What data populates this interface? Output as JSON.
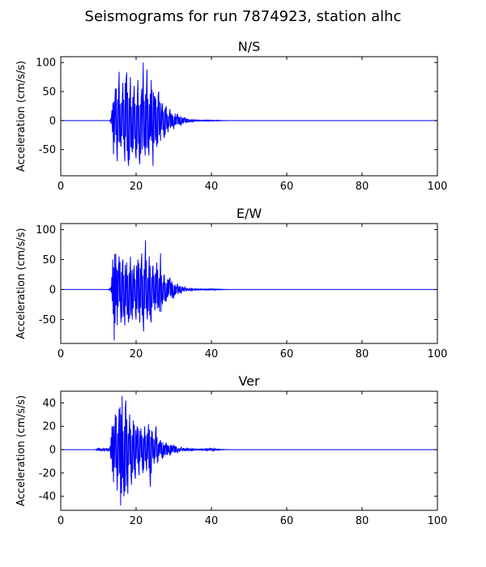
{
  "figure": {
    "title": "Seismograms for run 7874923, station alhc"
  },
  "chart_data": [
    {
      "type": "line",
      "title": "N/S",
      "xlabel": "",
      "ylabel": "Acceleration (cm/s/s)",
      "xlim": [
        0,
        100
      ],
      "ylim": [
        -95,
        110
      ],
      "xticks": [
        0,
        20,
        40,
        60,
        80,
        100
      ],
      "yticks": [
        -50,
        0,
        50,
        100
      ],
      "grid": false,
      "color": "#0000ff",
      "peaks": [
        {
          "x": 13.0,
          "y": 0
        },
        {
          "x": 13.6,
          "y": 18
        },
        {
          "x": 14.0,
          "y": -58
        },
        {
          "x": 14.5,
          "y": 55
        },
        {
          "x": 15.0,
          "y": -70
        },
        {
          "x": 15.5,
          "y": 84
        },
        {
          "x": 16.0,
          "y": -45
        },
        {
          "x": 16.5,
          "y": 65
        },
        {
          "x": 17.0,
          "y": -70
        },
        {
          "x": 17.5,
          "y": 83
        },
        {
          "x": 18.0,
          "y": -78
        },
        {
          "x": 18.5,
          "y": 75
        },
        {
          "x": 19.0,
          "y": -55
        },
        {
          "x": 19.5,
          "y": 60
        },
        {
          "x": 20.0,
          "y": -65
        },
        {
          "x": 20.5,
          "y": 70
        },
        {
          "x": 21.0,
          "y": -75
        },
        {
          "x": 21.5,
          "y": 55
        },
        {
          "x": 21.9,
          "y": 100
        },
        {
          "x": 22.4,
          "y": -60
        },
        {
          "x": 22.9,
          "y": 88
        },
        {
          "x": 23.4,
          "y": -60
        },
        {
          "x": 24.0,
          "y": 70
        },
        {
          "x": 24.5,
          "y": -78
        },
        {
          "x": 25.0,
          "y": 40
        },
        {
          "x": 25.5,
          "y": -45
        },
        {
          "x": 26.0,
          "y": 50
        },
        {
          "x": 26.5,
          "y": -35
        },
        {
          "x": 27.0,
          "y": 30
        },
        {
          "x": 27.5,
          "y": -30
        },
        {
          "x": 28.0,
          "y": 25
        },
        {
          "x": 28.5,
          "y": -20
        },
        {
          "x": 29.0,
          "y": 20
        },
        {
          "x": 30.0,
          "y": -15
        },
        {
          "x": 31.0,
          "y": 12
        },
        {
          "x": 32.0,
          "y": -8
        },
        {
          "x": 33.0,
          "y": 5
        },
        {
          "x": 34.0,
          "y": -3
        },
        {
          "x": 36.0,
          "y": 1
        },
        {
          "x": 40.0,
          "y": -1
        },
        {
          "x": 45.0,
          "y": 0
        },
        {
          "x": 100.0,
          "y": 0
        }
      ]
    },
    {
      "type": "line",
      "title": "E/W",
      "xlabel": "",
      "ylabel": "Acceleration (cm/s/s)",
      "xlim": [
        0,
        100
      ],
      "ylim": [
        -90,
        110
      ],
      "xticks": [
        0,
        20,
        40,
        60,
        80,
        100
      ],
      "yticks": [
        -50,
        0,
        50,
        100
      ],
      "grid": false,
      "color": "#0000ff",
      "peaks": [
        {
          "x": 12.5,
          "y": 0
        },
        {
          "x": 13.3,
          "y": 3
        },
        {
          "x": 13.8,
          "y": 50
        },
        {
          "x": 14.2,
          "y": -85
        },
        {
          "x": 14.6,
          "y": 60
        },
        {
          "x": 15.0,
          "y": -60
        },
        {
          "x": 15.5,
          "y": 55
        },
        {
          "x": 16.0,
          "y": -55
        },
        {
          "x": 16.5,
          "y": 50
        },
        {
          "x": 17.0,
          "y": -60
        },
        {
          "x": 17.5,
          "y": 45
        },
        {
          "x": 18.0,
          "y": -55
        },
        {
          "x": 18.5,
          "y": 55
        },
        {
          "x": 19.0,
          "y": -50
        },
        {
          "x": 19.5,
          "y": 40
        },
        {
          "x": 20.0,
          "y": -50
        },
        {
          "x": 20.5,
          "y": 50
        },
        {
          "x": 21.0,
          "y": -55
        },
        {
          "x": 21.5,
          "y": 60
        },
        {
          "x": 22.0,
          "y": -70
        },
        {
          "x": 22.5,
          "y": 82
        },
        {
          "x": 23.0,
          "y": -50
        },
        {
          "x": 23.5,
          "y": 55
        },
        {
          "x": 24.0,
          "y": -55
        },
        {
          "x": 24.5,
          "y": 40
        },
        {
          "x": 25.0,
          "y": -35
        },
        {
          "x": 25.5,
          "y": 45
        },
        {
          "x": 26.0,
          "y": -30
        },
        {
          "x": 26.5,
          "y": 60
        },
        {
          "x": 27.0,
          "y": -25
        },
        {
          "x": 27.5,
          "y": 25
        },
        {
          "x": 28.0,
          "y": -20
        },
        {
          "x": 29.0,
          "y": 20
        },
        {
          "x": 30.0,
          "y": -15
        },
        {
          "x": 31.0,
          "y": 10
        },
        {
          "x": 32.0,
          "y": -6
        },
        {
          "x": 33.0,
          "y": 4
        },
        {
          "x": 34.0,
          "y": -2
        },
        {
          "x": 37.0,
          "y": 1
        },
        {
          "x": 41.0,
          "y": -1
        },
        {
          "x": 45.0,
          "y": 0
        },
        {
          "x": 100.0,
          "y": 0
        }
      ]
    },
    {
      "type": "line",
      "title": "Ver",
      "xlabel": "",
      "ylabel": "Acceleration (cm/s/s)",
      "xlim": [
        0,
        100
      ],
      "ylim": [
        -52,
        50
      ],
      "xticks": [
        0,
        20,
        40,
        60,
        80,
        100
      ],
      "yticks": [
        -40,
        -20,
        0,
        20,
        40
      ],
      "grid": false,
      "color": "#0000ff",
      "peaks": [
        {
          "x": 9.0,
          "y": 0
        },
        {
          "x": 10.0,
          "y": 1
        },
        {
          "x": 11.0,
          "y": -1
        },
        {
          "x": 12.0,
          "y": 1
        },
        {
          "x": 13.0,
          "y": -1
        },
        {
          "x": 13.6,
          "y": 20
        },
        {
          "x": 14.0,
          "y": -28
        },
        {
          "x": 14.5,
          "y": 30
        },
        {
          "x": 15.0,
          "y": -35
        },
        {
          "x": 15.5,
          "y": 35
        },
        {
          "x": 15.9,
          "y": -48
        },
        {
          "x": 16.3,
          "y": 46
        },
        {
          "x": 16.8,
          "y": -40
        },
        {
          "x": 17.3,
          "y": 42
        },
        {
          "x": 17.8,
          "y": -38
        },
        {
          "x": 18.3,
          "y": 30
        },
        {
          "x": 18.8,
          "y": -30
        },
        {
          "x": 19.3,
          "y": 25
        },
        {
          "x": 19.8,
          "y": -25
        },
        {
          "x": 20.3,
          "y": 20
        },
        {
          "x": 20.8,
          "y": -22
        },
        {
          "x": 21.3,
          "y": 18
        },
        {
          "x": 21.8,
          "y": -20
        },
        {
          "x": 22.3,
          "y": 20
        },
        {
          "x": 22.8,
          "y": -18
        },
        {
          "x": 23.3,
          "y": 22
        },
        {
          "x": 23.8,
          "y": -32
        },
        {
          "x": 24.3,
          "y": 15
        },
        {
          "x": 24.8,
          "y": -12
        },
        {
          "x": 25.3,
          "y": 20
        },
        {
          "x": 25.8,
          "y": -10
        },
        {
          "x": 26.5,
          "y": 8
        },
        {
          "x": 27.0,
          "y": -8
        },
        {
          "x": 28.0,
          "y": 6
        },
        {
          "x": 29.0,
          "y": -5
        },
        {
          "x": 30.0,
          "y": 4
        },
        {
          "x": 31.0,
          "y": -3
        },
        {
          "x": 32.0,
          "y": 2
        },
        {
          "x": 34.0,
          "y": -1
        },
        {
          "x": 37.0,
          "y": 0.5
        },
        {
          "x": 40.0,
          "y": 1
        },
        {
          "x": 42.0,
          "y": -0.5
        },
        {
          "x": 45.0,
          "y": 0
        },
        {
          "x": 100.0,
          "y": 0
        }
      ]
    }
  ]
}
